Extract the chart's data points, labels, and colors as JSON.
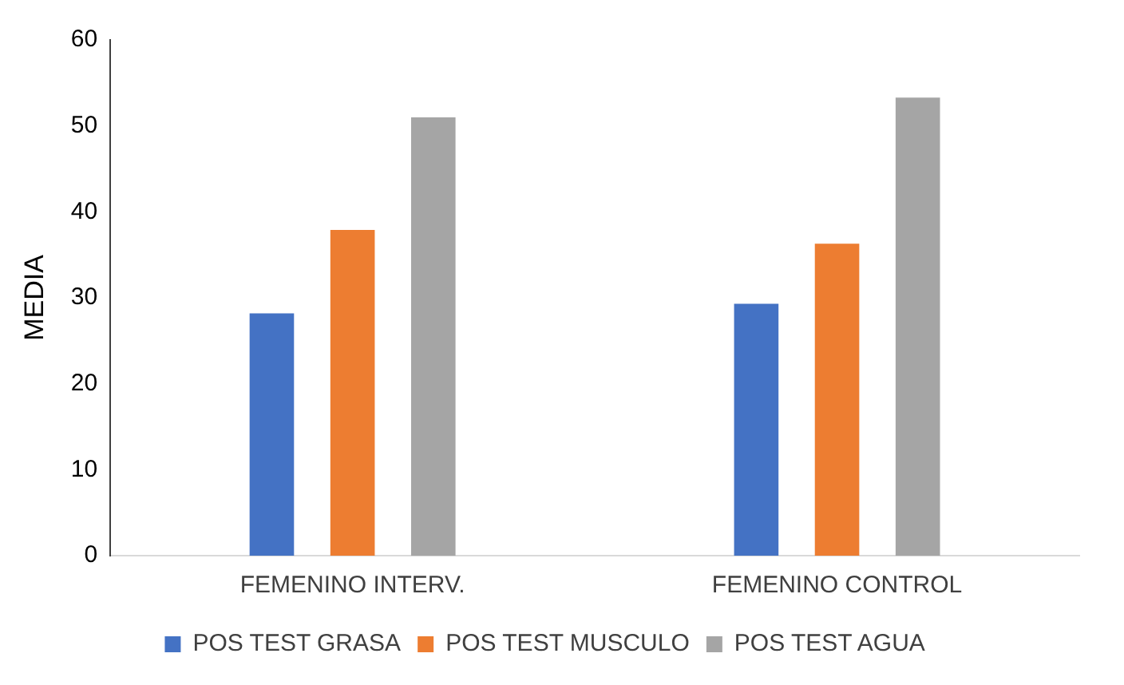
{
  "chart_data": {
    "type": "bar",
    "ylabel": "MEDIA",
    "categories": [
      "FEMENINO INTERV.",
      "FEMENINO CONTROL"
    ],
    "series": [
      {
        "name": "POS TEST GRASA",
        "color": "#4472c4",
        "values": [
          28.2,
          29.3
        ]
      },
      {
        "name": "POS TEST MUSCULO",
        "color": "#ed7d31",
        "values": [
          37.9,
          36.3
        ]
      },
      {
        "name": "POS TEST AGUA",
        "color": "#a5a5a5",
        "values": [
          51.0,
          53.3
        ]
      }
    ],
    "ylim": [
      0,
      60
    ],
    "yticks": [
      0,
      10,
      20,
      30,
      40,
      50,
      60
    ],
    "grid": false,
    "legend": "bottom"
  }
}
